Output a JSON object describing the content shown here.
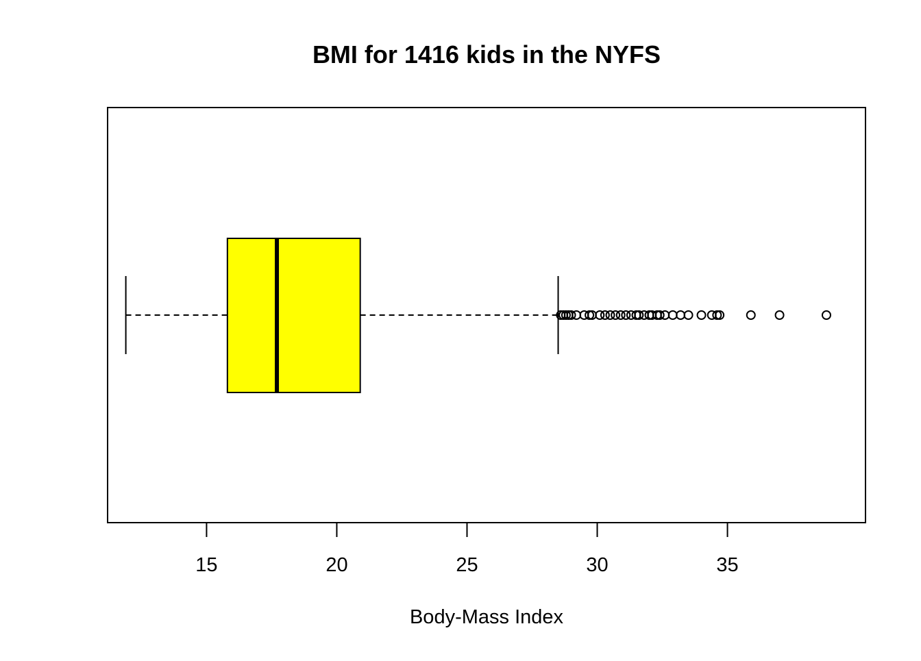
{
  "chart_data": {
    "type": "boxplot",
    "orientation": "horizontal",
    "title": "BMI for 1416 kids in the NYFS",
    "xlabel": "Body-Mass Index",
    "ylabel": "",
    "xlim": [
      11.2,
      40.3
    ],
    "x_ticks": [
      15,
      20,
      25,
      30,
      35
    ],
    "x_tick_labels": [
      "15",
      "20",
      "25",
      "30",
      "35"
    ],
    "box": {
      "whisker_low": 11.9,
      "q1": 15.8,
      "median": 17.7,
      "q3": 20.9,
      "whisker_high": 28.5
    },
    "outliers": [
      28.6,
      28.7,
      28.8,
      28.9,
      29.0,
      29.2,
      29.5,
      29.7,
      29.8,
      30.1,
      30.3,
      30.5,
      30.7,
      30.9,
      31.1,
      31.3,
      31.5,
      31.6,
      31.8,
      32.0,
      32.1,
      32.3,
      32.4,
      32.6,
      32.9,
      33.2,
      33.5,
      34.0,
      34.4,
      34.6,
      34.7,
      35.9,
      37.0,
      38.8
    ],
    "colors": {
      "box_fill": "#ffff00",
      "stroke": "#000000"
    },
    "grid": false,
    "legend": "none"
  }
}
